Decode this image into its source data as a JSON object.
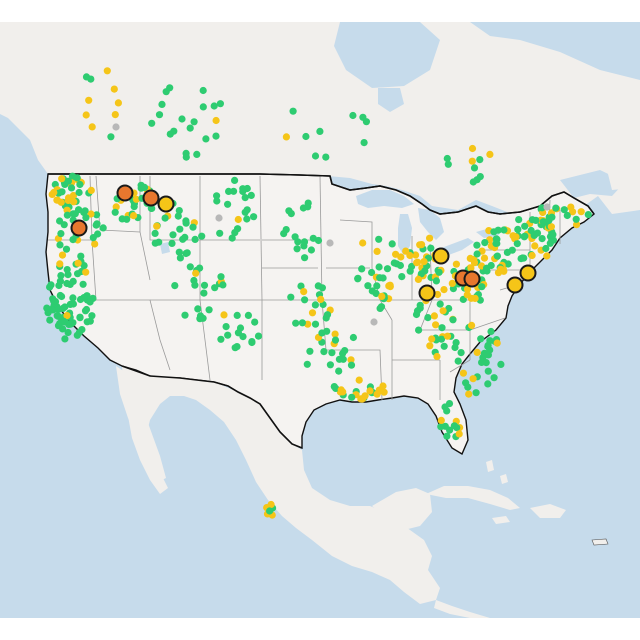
{
  "map": {
    "colors": {
      "water": "#c6dbeb",
      "land": "#f1efec",
      "land_shade": "#e9e6e2",
      "us_fill": "#f5f3f1",
      "state_border": "#9a9a9a",
      "country_border": "#111111",
      "marker_green": "#2ecc71",
      "marker_yellow": "#f5c518",
      "marker_orange": "#e8772e",
      "marker_gray": "#b8b8b8",
      "marker_outline": "#1a1a1a"
    },
    "marker_categories": [
      "green",
      "yellow",
      "orange",
      "gray"
    ],
    "highlighted_markers": [
      {
        "id": "orange-oregon",
        "category": "orange"
      },
      {
        "id": "orange-idaho",
        "category": "orange"
      },
      {
        "id": "orange-montana",
        "category": "orange"
      },
      {
        "id": "yellow-montana",
        "category": "yellow"
      },
      {
        "id": "yellow-michigan",
        "category": "yellow"
      },
      {
        "id": "yellow-indiana",
        "category": "yellow"
      },
      {
        "id": "orange-ohio-1",
        "category": "orange"
      },
      {
        "id": "orange-ohio-2",
        "category": "orange"
      },
      {
        "id": "yellow-newjersey",
        "category": "yellow"
      },
      {
        "id": "yellow-delaware",
        "category": "yellow"
      }
    ]
  }
}
